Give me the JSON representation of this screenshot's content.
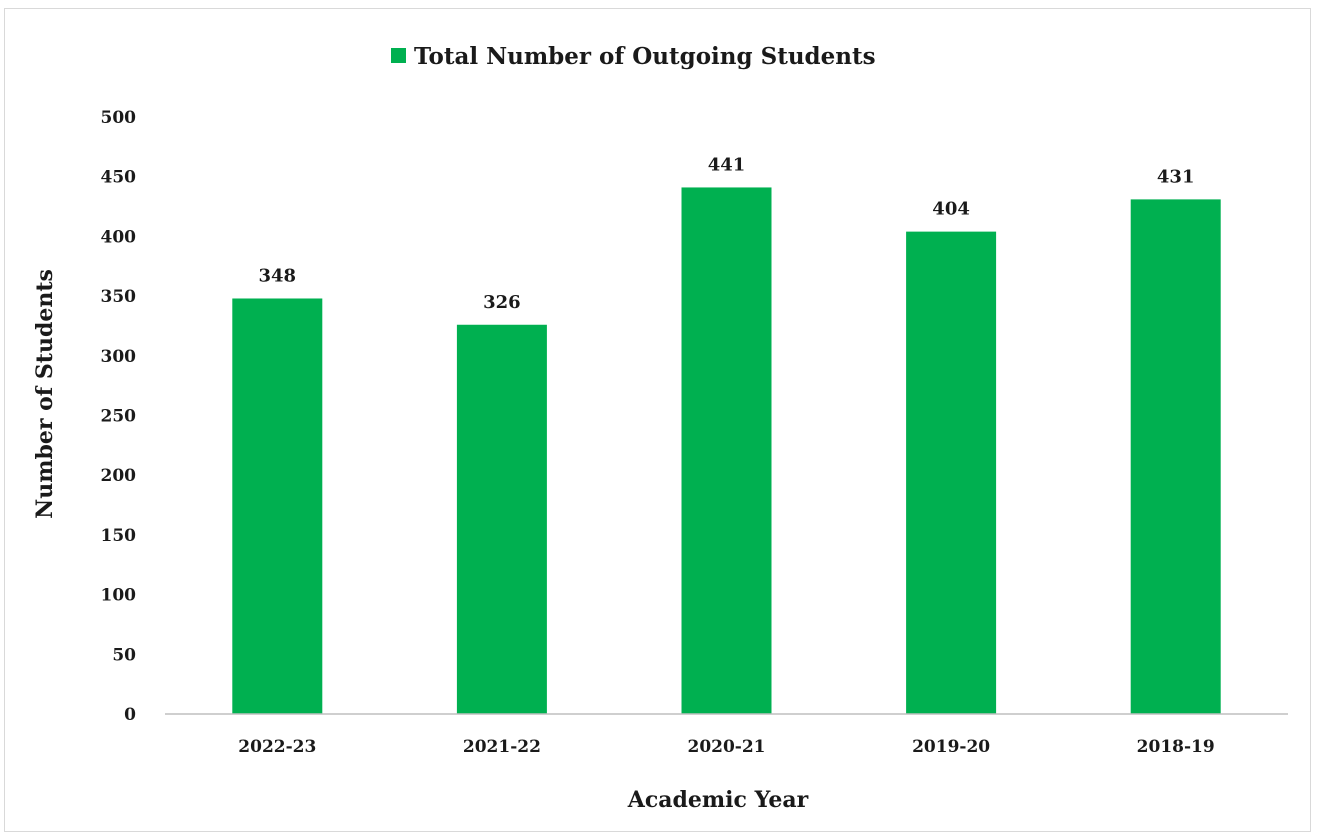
{
  "chart_data": {
    "type": "bar",
    "categories": [
      "2022-23",
      "2021-22",
      "2020-21",
      "2019-20",
      "2018-19"
    ],
    "series": [
      {
        "name": "Total Number of Outgoing Students",
        "values": [
          348,
          326,
          441,
          404,
          431
        ],
        "color": "#00b050"
      }
    ],
    "xlabel": "Academic Year",
    "ylabel": "Number of Students",
    "ylim": [
      0,
      500
    ],
    "yticks": [
      "0",
      "50",
      "100",
      "150",
      "200",
      "250",
      "300",
      "350",
      "400",
      "450",
      "500"
    ],
    "data_labels": [
      "348",
      "326",
      "441",
      "404",
      "431"
    ],
    "grid": false,
    "legend_position": "top"
  }
}
